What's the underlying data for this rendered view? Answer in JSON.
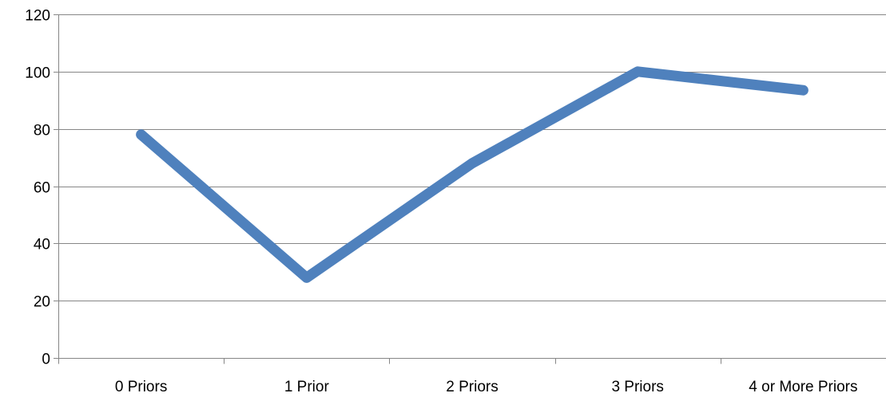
{
  "chart_data": {
    "type": "line",
    "title": "",
    "xlabel": "",
    "ylabel": "",
    "categories": [
      "0 Priors",
      "1 Prior",
      "2 Priors",
      "3 Priors",
      "4 or More Priors"
    ],
    "series": [
      {
        "values": [
          78,
          28,
          68,
          100,
          93.5
        ],
        "color": "#4F81BD"
      }
    ],
    "ylim": [
      0,
      120
    ],
    "yticks": [
      0,
      20,
      40,
      60,
      80,
      100,
      120
    ],
    "grid": true,
    "legend": "none"
  }
}
